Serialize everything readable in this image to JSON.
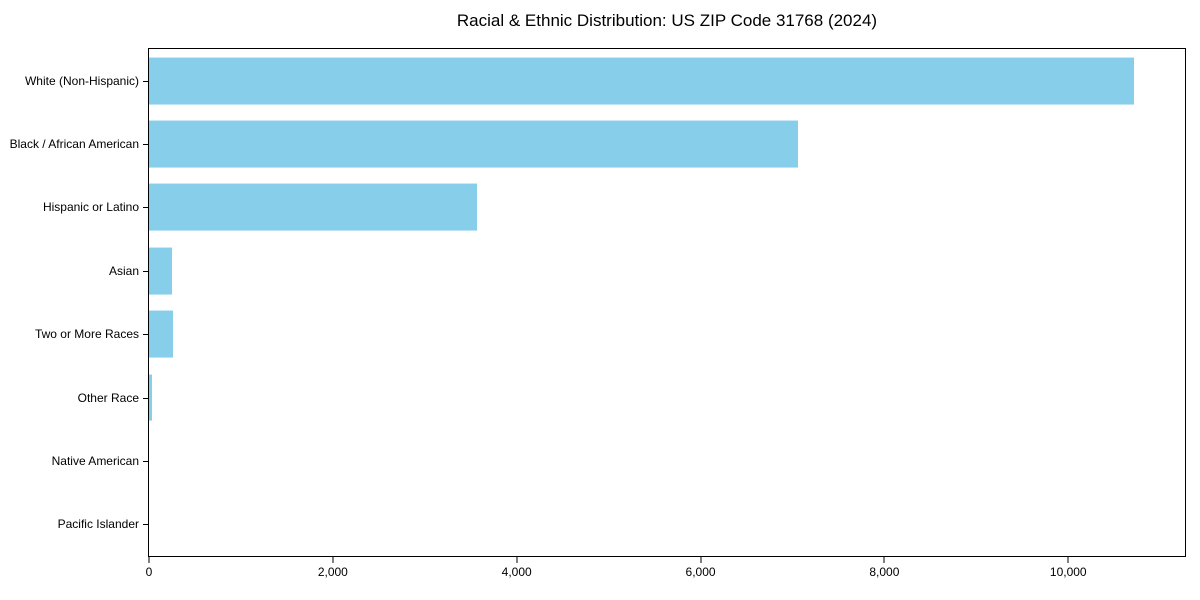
{
  "page": {
    "title": "Racial & Ethnic Distribution: US ZIP Code 31768 (2024)"
  },
  "chart_data": {
    "type": "bar",
    "orientation": "horizontal",
    "title": "Racial & Ethnic Distribution: US ZIP Code 31768 (2024)",
    "categories": [
      "White (Non-Hispanic)",
      "Black / African American",
      "Hispanic or Latino",
      "Asian",
      "Two or More Races",
      "Other Race",
      "Native American",
      "Pacific Islander"
    ],
    "values": [
      10720,
      7060,
      3570,
      255,
      265,
      30,
      0,
      0
    ],
    "xlabel": "",
    "ylabel": "",
    "xlim": [
      0,
      11270
    ],
    "x_ticks": [
      0,
      2000,
      4000,
      6000,
      8000,
      10000
    ],
    "x_tick_labels": [
      "0",
      "2,000",
      "4,000",
      "6,000",
      "8,000",
      "10,000"
    ],
    "bar_color": "#87CEEB",
    "axis_color": "#000000",
    "grid": false,
    "legend": null
  }
}
